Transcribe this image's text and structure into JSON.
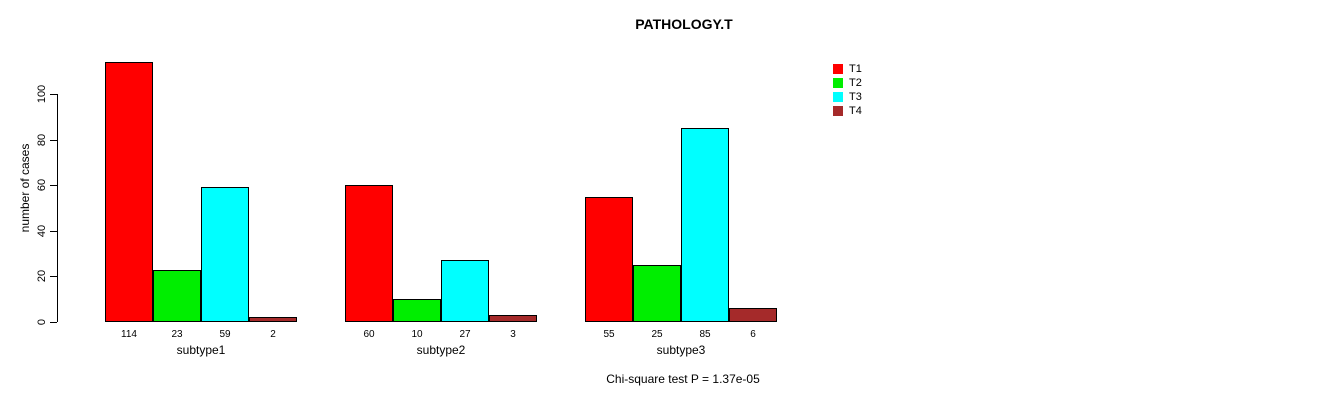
{
  "chart_data": {
    "type": "bar",
    "title": "PATHOLOGY.T",
    "ylabel": "number of cases",
    "xlabel": "",
    "yticks": [
      0,
      20,
      40,
      60,
      80,
      100
    ],
    "ylim": [
      0,
      115
    ],
    "grid": false,
    "categories": [
      "subtype1",
      "subtype2",
      "subtype3"
    ],
    "series": [
      {
        "name": "T1",
        "color": "#ff0000",
        "values": [
          114,
          60,
          55
        ]
      },
      {
        "name": "T2",
        "color": "#00ee00",
        "values": [
          23,
          10,
          25
        ]
      },
      {
        "name": "T3",
        "color": "#00ffff",
        "values": [
          59,
          27,
          85
        ]
      },
      {
        "name": "T4",
        "color": "#a52a2a",
        "values": [
          2,
          3,
          6
        ]
      }
    ],
    "bar_value_labels": [
      [
        114,
        23,
        59,
        2
      ],
      [
        60,
        10,
        27,
        3
      ],
      [
        55,
        25,
        85,
        6
      ]
    ],
    "legend": {
      "position": "top-right",
      "entries": [
        "T1",
        "T2",
        "T3",
        "T4"
      ]
    },
    "annotation": "Chi-square test P = 1.37e-05",
    "colors": {
      "axis": "#000000",
      "bar_border": "#000000",
      "background": "#ffffff"
    }
  }
}
